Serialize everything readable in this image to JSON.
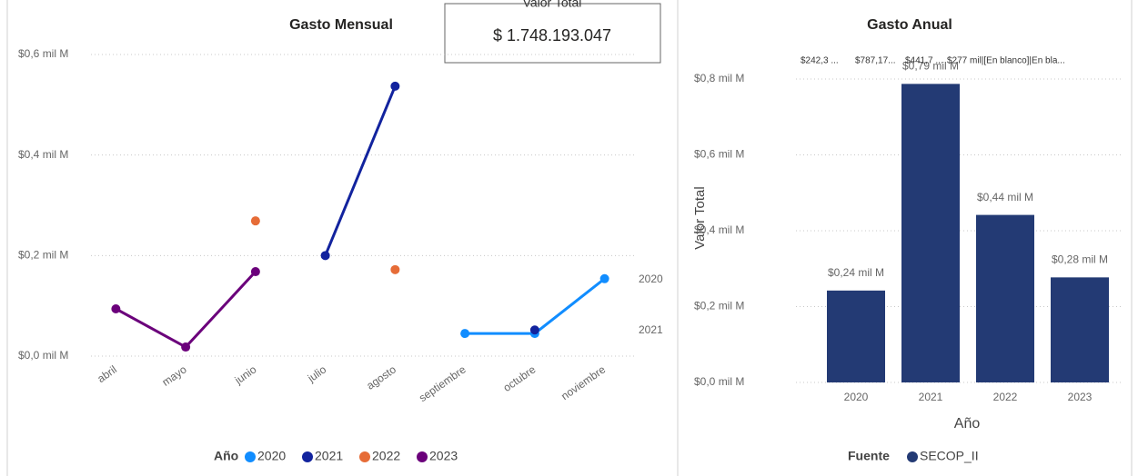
{
  "card": {
    "title": "Valor Total",
    "value": "$ 1.748.193.047"
  },
  "chart_data": [
    {
      "type": "line",
      "title": "Gasto Mensual",
      "categories": [
        "abril",
        "mayo",
        "junio",
        "julio",
        "agosto",
        "septiembre",
        "octubre",
        "noviembre"
      ],
      "ylim": [
        0,
        0.6
      ],
      "yticks": [
        {
          "value": 0,
          "label": "$0,0 mil M"
        },
        {
          "value": 0.2,
          "label": "$0,2 mil M"
        },
        {
          "value": 0.4,
          "label": "$0,4 mil M"
        },
        {
          "value": 0.6,
          "label": "$0,6 mil M"
        }
      ],
      "grid": true,
      "legend_title": "Año",
      "legend": "bottom",
      "series": [
        {
          "name": "2020",
          "color": "#118dff",
          "values": [
            null,
            null,
            null,
            null,
            null,
            0.045,
            0.045,
            0.154
          ]
        },
        {
          "name": "2021",
          "color": "#12239e",
          "values": [
            null,
            null,
            null,
            0.2,
            0.537,
            null,
            0.052,
            null
          ]
        },
        {
          "name": "2022",
          "color": "#e66c37",
          "values": [
            null,
            null,
            0.269,
            null,
            0.172,
            null,
            null,
            null
          ]
        },
        {
          "name": "2023",
          "color": "#6b007b",
          "values": [
            0.094,
            0.018,
            0.168,
            null,
            null,
            null,
            null,
            null
          ]
        }
      ]
    },
    {
      "type": "bar",
      "title": "Gasto Anual",
      "x_label": "Año",
      "y_label": "Valor Total",
      "categories": [
        "2020",
        "2021",
        "2022",
        "2023"
      ],
      "values": [
        0.2423,
        0.78717,
        0.4417,
        0.277
      ],
      "value_labels": [
        "$0,24 mil M",
        "$0,79 mil M",
        "$0,44 mil M",
        "$0,28 mil M"
      ],
      "top_labels": [
        "$242,3 ...",
        "$787,17...",
        "$441,7 ...",
        "$277 mil|[En blanco]|En bla..."
      ],
      "color": "#233a74",
      "ylim": [
        0,
        0.8
      ],
      "yticks": [
        {
          "value": 0,
          "label": "$0,0 mil M"
        },
        {
          "value": 0.2,
          "label": "$0,2 mil M"
        },
        {
          "value": 0.4,
          "label": "$0,4 mil M"
        },
        {
          "value": 0.6,
          "label": "$0,6 mil M"
        },
        {
          "value": 0.8,
          "label": "$0,8 mil M"
        }
      ],
      "grid": true,
      "legend_title": "Fuente",
      "legend_entries": [
        "SECOP_II"
      ],
      "legend": "bottom"
    }
  ]
}
